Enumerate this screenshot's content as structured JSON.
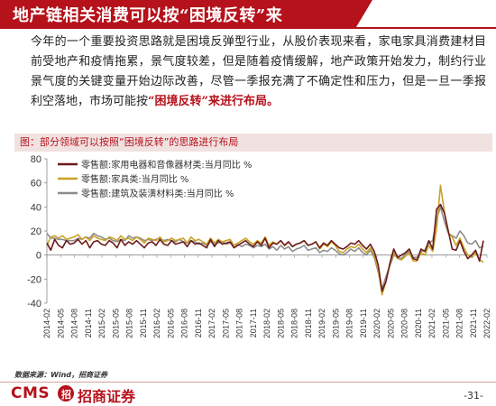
{
  "header": {
    "title": "地产链相关消费可以按“困境反转”来"
  },
  "body_text": {
    "main": "今年的一个重要投资思路就是困境反弹型行业，从股价表现来看，家电家具消费建材目前受地产和疫情拖累，景气度较差，但是随着疫情缓解，地产政策开始发力，制约行业景气度的关键变量开始边际改善，尽管一季报充满了不确定性和压力，但是一旦一季报利空落地，市场可能按",
    "highlight": "“困境反转”来进行布局。"
  },
  "figure": {
    "title": "图：部分领域可以按照“困境反转”的思路进行布局"
  },
  "footer": {
    "source": "数据来源：Wind，招商证券",
    "logo_en": "CMS",
    "logo_mark": "招",
    "logo_cn": "招商证券",
    "page": "-31-"
  },
  "colors": {
    "brand": "#b5121b",
    "series1": "#6b1a1a",
    "series2": "#c9a227",
    "series3": "#8c8c8c"
  },
  "chart_data": {
    "type": "line",
    "ylim": [
      -40,
      80
    ],
    "yticks": [
      -40,
      -20,
      0,
      20,
      40,
      60,
      80
    ],
    "xtick_labels": [
      "2014-02",
      "2014-05",
      "2014-08",
      "2014-11",
      "2015-02",
      "2015-05",
      "2015-08",
      "2015-11",
      "2016-02",
      "2016-05",
      "2016-08",
      "2016-11",
      "2017-02",
      "2017-05",
      "2017-08",
      "2017-11",
      "2018-02",
      "2018-05",
      "2018-08",
      "2018-11",
      "2019-02",
      "2019-05",
      "2019-08",
      "2019-11",
      "2020-02",
      "2020-05",
      "2020-08",
      "2020-11",
      "2021-02",
      "2021-05",
      "2021-08",
      "2021-11",
      "2022-02"
    ],
    "series": [
      {
        "name": "零售额:家用电器和音像器材类:当月同比 %",
        "values": [
          10,
          4,
          13,
          8,
          6,
          12,
          9,
          10,
          13,
          9,
          12,
          6,
          11,
          12,
          9,
          8,
          12,
          10,
          6,
          13,
          8,
          11,
          9,
          12,
          9,
          6,
          10,
          11,
          8,
          13,
          9,
          8,
          12,
          9,
          10,
          11,
          7,
          12,
          9,
          10,
          8,
          6,
          13,
          7,
          12,
          9,
          10,
          11,
          6,
          8,
          10,
          12,
          9,
          7,
          11,
          8,
          14,
          6,
          10,
          9,
          12,
          8,
          11,
          7,
          9,
          10,
          12,
          8,
          9,
          11,
          6,
          10,
          8,
          12,
          9,
          6,
          5,
          7,
          10,
          9,
          12,
          8,
          5,
          9,
          3,
          -8,
          -30,
          -22,
          -7,
          5,
          -2,
          0,
          2,
          5,
          -3,
          -4,
          5,
          3,
          12,
          5,
          38,
          42,
          35,
          20,
          5,
          4,
          12,
          3,
          -3,
          0,
          4,
          -5,
          12
        ]
      },
      {
        "name": "零售额:家具类:当月同比 %",
        "values": [
          8,
          15,
          16,
          14,
          16,
          13,
          14,
          15,
          17,
          13,
          15,
          12,
          16,
          14,
          13,
          12,
          15,
          14,
          12,
          16,
          13,
          14,
          12,
          15,
          13,
          10,
          14,
          13,
          12,
          15,
          11,
          12,
          14,
          12,
          13,
          14,
          10,
          15,
          12,
          13,
          11,
          9,
          14,
          10,
          13,
          11,
          12,
          13,
          8,
          10,
          12,
          14,
          11,
          9,
          12,
          10,
          15,
          8,
          11,
          9,
          12,
          8,
          11,
          7,
          9,
          10,
          12,
          8,
          9,
          11,
          5,
          9,
          7,
          11,
          8,
          3,
          2,
          5,
          7,
          6,
          9,
          5,
          2,
          6,
          0,
          -12,
          -33,
          -22,
          -8,
          2,
          -3,
          -4,
          -1,
          2,
          -5,
          -5,
          2,
          0,
          8,
          3,
          22,
          58,
          36,
          18,
          15,
          8,
          14,
          6,
          0,
          -2,
          2,
          -4,
          -6
        ]
      },
      {
        "name": "零售额:建筑及装潢材料类:当月同比 %",
        "values": [
          18,
          14,
          14,
          13,
          13,
          12,
          12,
          12,
          14,
          13,
          15,
          14,
          18,
          16,
          15,
          13,
          14,
          12,
          11,
          13,
          12,
          16,
          14,
          15,
          14,
          12,
          13,
          12,
          13,
          14,
          12,
          13,
          12,
          11,
          13,
          11,
          10,
          12,
          11,
          9,
          10,
          8,
          11,
          9,
          10,
          11,
          9,
          10,
          8,
          9,
          7,
          9,
          8,
          6,
          8,
          7,
          9,
          5,
          7,
          4,
          8,
          5,
          7,
          3,
          5,
          6,
          8,
          4,
          5,
          6,
          2,
          4,
          3,
          6,
          4,
          1,
          0,
          2,
          5,
          3,
          6,
          2,
          0,
          4,
          -2,
          -14,
          -28,
          -18,
          -9,
          0,
          -2,
          -3,
          1,
          3,
          -2,
          -2,
          3,
          4,
          10,
          12,
          30,
          40,
          28,
          18,
          16,
          14,
          20,
          16,
          10,
          9,
          12,
          6,
          7
        ]
      }
    ]
  }
}
